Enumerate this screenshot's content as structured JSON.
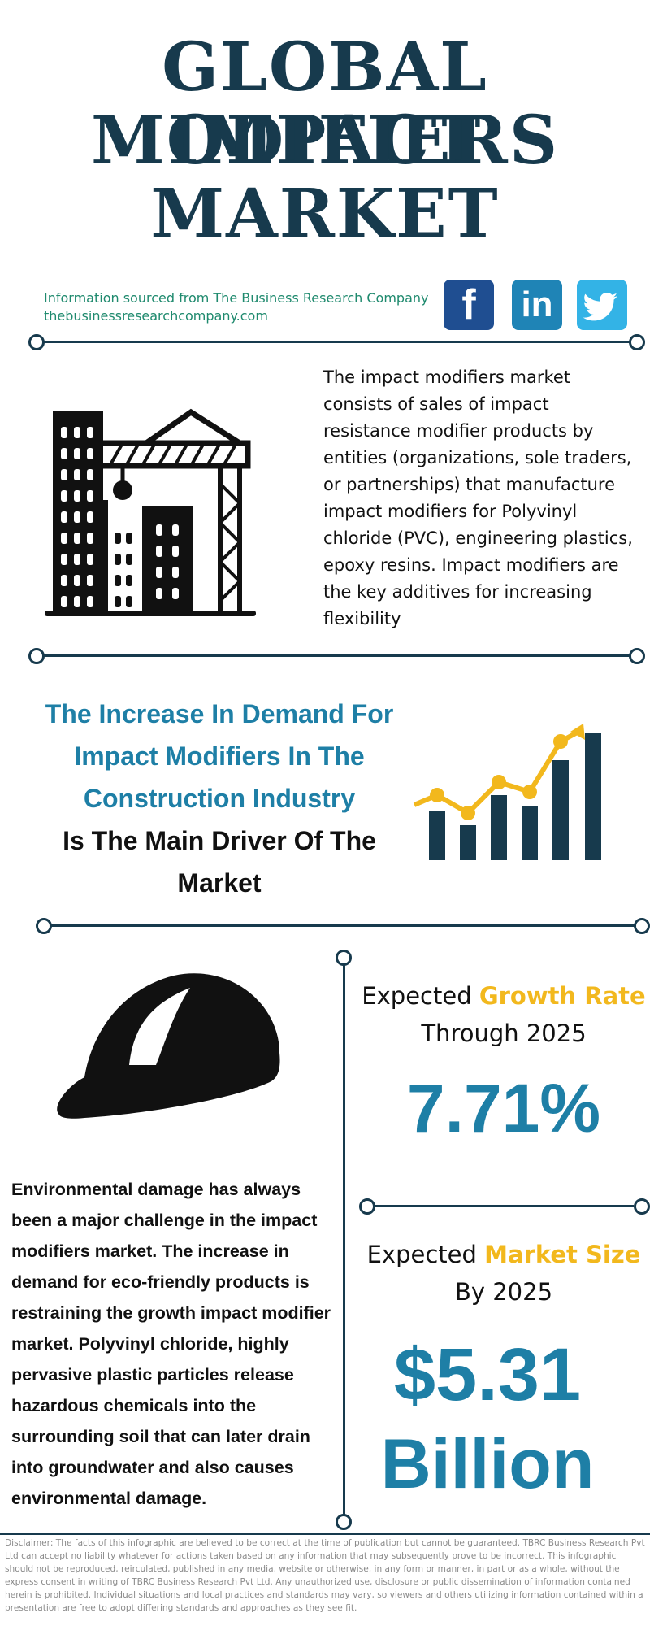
{
  "title": {
    "line1": "GLOBAL IMPACT",
    "line2": "MODIFIERS",
    "line3": "MARKET"
  },
  "source": {
    "line1": "Information sourced from The Business Research Company",
    "line2": "thebusinessresearchcompany.com"
  },
  "social": {
    "facebook": {
      "label": "f",
      "icon": "facebook-icon",
      "color": "#1f4e91"
    },
    "linkedin": {
      "label": "in",
      "icon": "linkedin-icon",
      "color": "#1f84b6"
    },
    "twitter": {
      "icon": "twitter-icon",
      "color": "#33b3e6"
    }
  },
  "description": "The impact modifiers market consists of sales of impact resistance modifier products by entities (organizations, sole traders, or partnerships) that manufacture impact modifiers for Polyvinyl chloride (PVC), engineering plastics, epoxy resins. Impact modifiers are the key additives for increasing flexibility",
  "driver": {
    "highlight": [
      "The Increase In Demand For",
      "Impact Modifiers In The",
      "Construction Industry"
    ],
    "rest": [
      "Is The Main Driver Of The",
      "Market"
    ]
  },
  "restraint": "Environmental damage has always been a major challenge in the impact modifiers market. The increase in demand for eco-friendly products is restraining the growth impact modifier market. Polyvinyl chloride, highly pervasive plastic particles release hazardous chemicals into the surrounding soil that can later drain into groundwater and also causes environmental damage.",
  "growth": {
    "prefix": "Expected",
    "highlight": "Growth Rate",
    "suffix": "Through 2025",
    "value": "7.71%"
  },
  "market_size": {
    "prefix": "Expected",
    "highlight": "Market Size",
    "suffix": "By 2025",
    "value": "$5.31",
    "unit": "Billion"
  },
  "disclaimer": "Disclaimer: The facts of this infographic are believed to be correct at the time of publication but cannot be guaranteed. TBRC Business Research Pvt Ltd can accept no liability whatever for actions taken based on any information that may subsequently prove to be incorrect. This infographic should not be reproduced, reirculated, published in any media, website or otherwise, in any form or manner, in part or as a whole, without the express consent in writing of TBRC Business Research Pvt Ltd. Any unauthorized use, disclosure or public dissemination of information contained herein is prohibited. Individual situations and local practices and standards may vary, so viewers and others utilizing information contained within a presentation are free to adopt differing standards and approaches as they see fit.",
  "colors": {
    "navy": "#173a4d",
    "teal_blue": "#1e7fa6",
    "gold": "#f2b81d",
    "green_text": "#1f8a6e"
  }
}
